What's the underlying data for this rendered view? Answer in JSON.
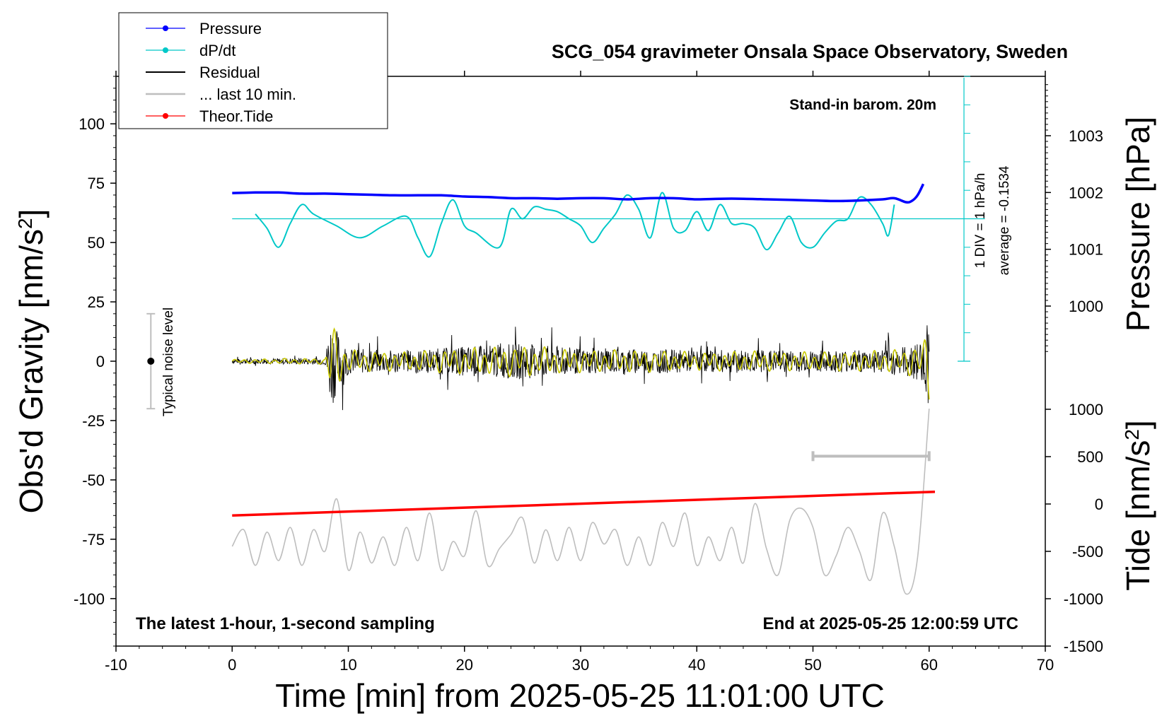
{
  "chart_data": {
    "type": "line",
    "title": "SCG_054 gravimeter Onsala Space Observatory, Sweden",
    "xlabel": "Time [min] from 2025-05-25 11:01:00 UTC",
    "ylabel_left_main": "Obs'd Gravity [nm/s",
    "ylabel_left_sup": "2",
    "ylabel_left_end": "]",
    "ylabel_right_top": "Pressure [hPa]",
    "ylabel_right_bottom_main": "Tide [nm/s",
    "ylabel_right_bottom_sup": "2",
    "ylabel_right_bottom_end": "]",
    "xlim": [
      -10,
      70
    ],
    "ylim_left": [
      -120,
      120
    ],
    "x_ticks": [
      "-10",
      "0",
      "10",
      "20",
      "30",
      "40",
      "50",
      "60",
      "70"
    ],
    "y_ticks_left": [
      "100",
      "75",
      "50",
      "25",
      "0",
      "-25",
      "-50",
      "-75",
      "-100"
    ],
    "y_ticks_pressure": [
      "1003",
      "1002",
      "1001",
      "1000"
    ],
    "y_ticks_tide": [
      "1000",
      "500",
      "0",
      "-500",
      "-1000",
      "-1500"
    ],
    "legend_position": "top-left",
    "legend": [
      {
        "label": "Pressure",
        "color": "#0000ff",
        "marker": true
      },
      {
        "label": "dP/dt",
        "color": "#00c8c8",
        "marker": true
      },
      {
        "label": "Residual",
        "color": "#000000",
        "marker": false
      },
      {
        "label": "... last 10 min.",
        "color": "#bebebe",
        "marker": false
      },
      {
        "label": "Theor.Tide",
        "color": "#ff0000",
        "marker": true
      }
    ],
    "annotations": {
      "barometer": "Stand-in barom. 20m",
      "bottom_left": "The latest 1-hour, 1-second sampling",
      "bottom_right": "End at 2025-05-25 12:00:59 UTC",
      "div_label": "1 DIV = 1 hPa/h",
      "average_label": "average = -0.1534",
      "noise_label": "Typical noise level"
    },
    "series": {
      "pressure": {
        "name": "Pressure",
        "color": "#0000ff",
        "x": [
          0,
          2,
          4,
          6,
          8,
          10,
          12,
          14,
          16,
          18,
          20,
          22,
          24,
          26,
          28,
          30,
          32,
          34,
          36,
          38,
          40,
          42,
          44,
          46,
          48,
          50,
          52,
          54,
          56,
          57,
          58,
          58.5,
          59,
          59.5
        ],
        "y": [
          1001.99,
          1002.0,
          1002.0,
          1001.98,
          1001.98,
          1001.97,
          1001.96,
          1001.95,
          1001.95,
          1001.95,
          1001.93,
          1001.92,
          1001.9,
          1001.9,
          1001.89,
          1001.9,
          1001.9,
          1001.88,
          1001.9,
          1001.9,
          1001.88,
          1001.89,
          1001.89,
          1001.88,
          1001.87,
          1001.86,
          1001.85,
          1001.86,
          1001.88,
          1001.9,
          1001.83,
          1001.85,
          1001.95,
          1002.15
        ]
      },
      "dpdt": {
        "name": "dP/dt",
        "color": "#00c8c8",
        "x": [
          2,
          3,
          4,
          5,
          6,
          7,
          9,
          11,
          13,
          15,
          16,
          17,
          18,
          19,
          20,
          21,
          23,
          24,
          25,
          26,
          27,
          28,
          29,
          30,
          31,
          32,
          33,
          34,
          35,
          36,
          37,
          38,
          39,
          40,
          41,
          42,
          43,
          44,
          45,
          46,
          47,
          48,
          49,
          50,
          51,
          52,
          53,
          54,
          55,
          56,
          56.5,
          57
        ],
        "y": [
          62,
          56,
          48,
          58,
          66,
          62,
          57,
          52,
          57,
          61,
          52,
          44,
          58,
          68,
          57,
          54,
          48,
          64,
          60,
          65,
          64,
          63,
          60,
          57,
          50,
          56,
          62,
          70,
          64,
          52,
          71,
          56,
          55,
          63,
          55,
          66,
          58,
          58,
          56,
          47,
          54,
          61,
          50,
          48,
          54,
          59,
          60,
          69,
          66,
          58,
          53,
          66
        ]
      },
      "residual": {
        "name": "Residual",
        "color": "#000000",
        "x_start": 0,
        "x_end": 60,
        "envelope_x": [
          0,
          5,
          8,
          8.5,
          9,
          10,
          15,
          20,
          25,
          30,
          35,
          40,
          45,
          50,
          55,
          58,
          59.5,
          60
        ],
        "envelope_y": [
          2,
          3,
          3,
          45,
          30,
          12,
          10,
          14,
          17,
          12,
          12,
          10,
          11,
          10,
          11,
          14,
          20,
          47
        ]
      },
      "last10": {
        "name": "... last 10 min.",
        "color": "#bebebe",
        "x": [
          0,
          1,
          2,
          3,
          4,
          5,
          6,
          7,
          8,
          9,
          10,
          11,
          12,
          13,
          14,
          15,
          16,
          17,
          18,
          19,
          20,
          21,
          22,
          23,
          24,
          25,
          26,
          27,
          28,
          29,
          30,
          31,
          32,
          33,
          34,
          35,
          36,
          37,
          38,
          39,
          40,
          41,
          42,
          43,
          44,
          45,
          46,
          47,
          48,
          49,
          50,
          51,
          52,
          53,
          54,
          55,
          56,
          57,
          58,
          59,
          60
        ],
        "y": [
          -78,
          -71,
          -86,
          -72,
          -84,
          -70,
          -86,
          -71,
          -80,
          -58,
          -88,
          -72,
          -85,
          -74,
          -86,
          -70,
          -84,
          -64,
          -88,
          -76,
          -82,
          -63,
          -86,
          -79,
          -73,
          -66,
          -85,
          -71,
          -84,
          -70,
          -84,
          -68,
          -77,
          -71,
          -86,
          -74,
          -86,
          -68,
          -78,
          -64,
          -86,
          -74,
          -84,
          -70,
          -85,
          -60,
          -79,
          -90,
          -67,
          -62,
          -70,
          -90,
          -82,
          -70,
          -80,
          -92,
          -64,
          -78,
          -98,
          -83,
          -20
        ]
      },
      "tide": {
        "name": "Theor.Tide",
        "color": "#ff0000",
        "x": [
          0,
          60.5
        ],
        "y": [
          -65,
          -55
        ]
      }
    },
    "last10_bar": {
      "x_start": 50,
      "x_end": 60,
      "y": -40
    },
    "noise_bar": {
      "x": -7,
      "y_low": -20,
      "y_high": 20
    },
    "dpdt_axis": {
      "x": 63,
      "y_base": 0,
      "y_top": 120,
      "zero_y": 60
    }
  }
}
